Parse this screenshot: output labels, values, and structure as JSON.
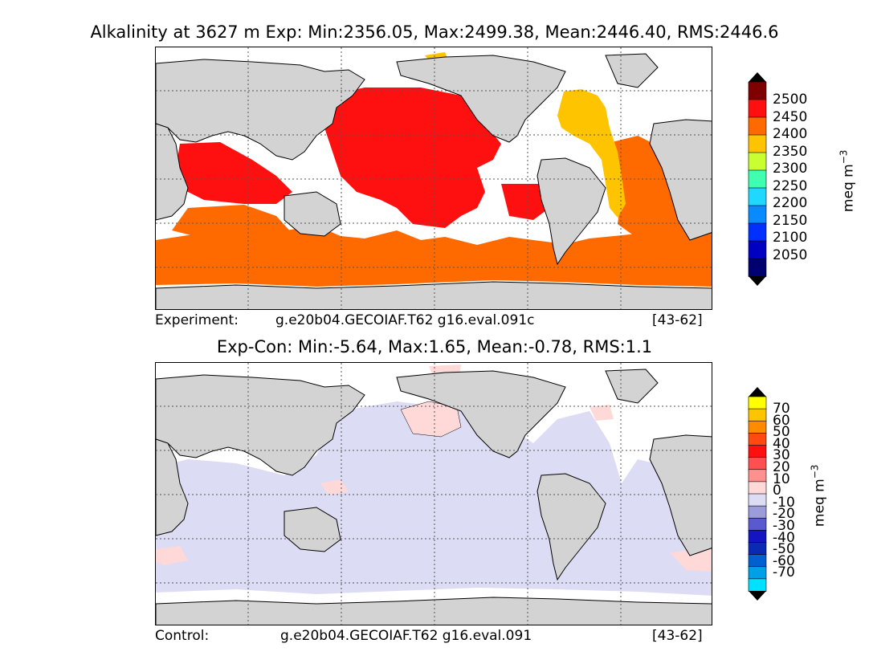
{
  "top_panel": {
    "title": "Alkalinity at 3627 m Exp: Min:2356.05, Max:2499.38, Mean:2446.40, RMS:2446.6",
    "caption_label": "Experiment:",
    "caption_case": "g.e20b04.GECOIAF.T62 g16.eval.091c",
    "caption_years": "[43-62]",
    "colorbar": {
      "unit": "meq m",
      "unit_exp": "−3",
      "ticks": [
        "2500",
        "2450",
        "2400",
        "2350",
        "2300",
        "2250",
        "2200",
        "2150",
        "2100",
        "2050"
      ],
      "colors": [
        "#7f0000",
        "#ff1010",
        "#ff6a00",
        "#ffc400",
        "#c8ff30",
        "#40ffb0",
        "#20d8ff",
        "#0a8aff",
        "#0030ff",
        "#0000c0",
        "#000070"
      ],
      "over_color": "#000000",
      "under_color": "#000000"
    }
  },
  "bottom_panel": {
    "title": "Exp-Con: Min:-5.64, Max:1.65, Mean:-0.78, RMS:1.1",
    "caption_label": "Control:",
    "caption_case": "g.e20b04.GECOIAF.T62 g16.eval.091",
    "caption_years": "[43-62]",
    "colorbar": {
      "unit": "meq m",
      "unit_exp": "−3",
      "ticks": [
        "70",
        "60",
        "50",
        "40",
        "30",
        "20",
        "10",
        "0",
        "-10",
        "-20",
        "-30",
        "-40",
        "-50",
        "-60",
        "-70"
      ],
      "colors": [
        "#ffff00",
        "#ffc400",
        "#ff8c00",
        "#ff4a10",
        "#ff1010",
        "#ff5050",
        "#ff9090",
        "#ffd8d8",
        "#dcdcf5",
        "#9c9cdc",
        "#5a5ad0",
        "#1414c0",
        "#0a2ab4",
        "#0060d0",
        "#00a0e8",
        "#00e0ff"
      ],
      "over_color": "#000000",
      "under_color": "#000000"
    }
  },
  "map_colors": {
    "land": "#d3d3d3",
    "missing": "#ffffff",
    "grid": "#555555"
  }
}
